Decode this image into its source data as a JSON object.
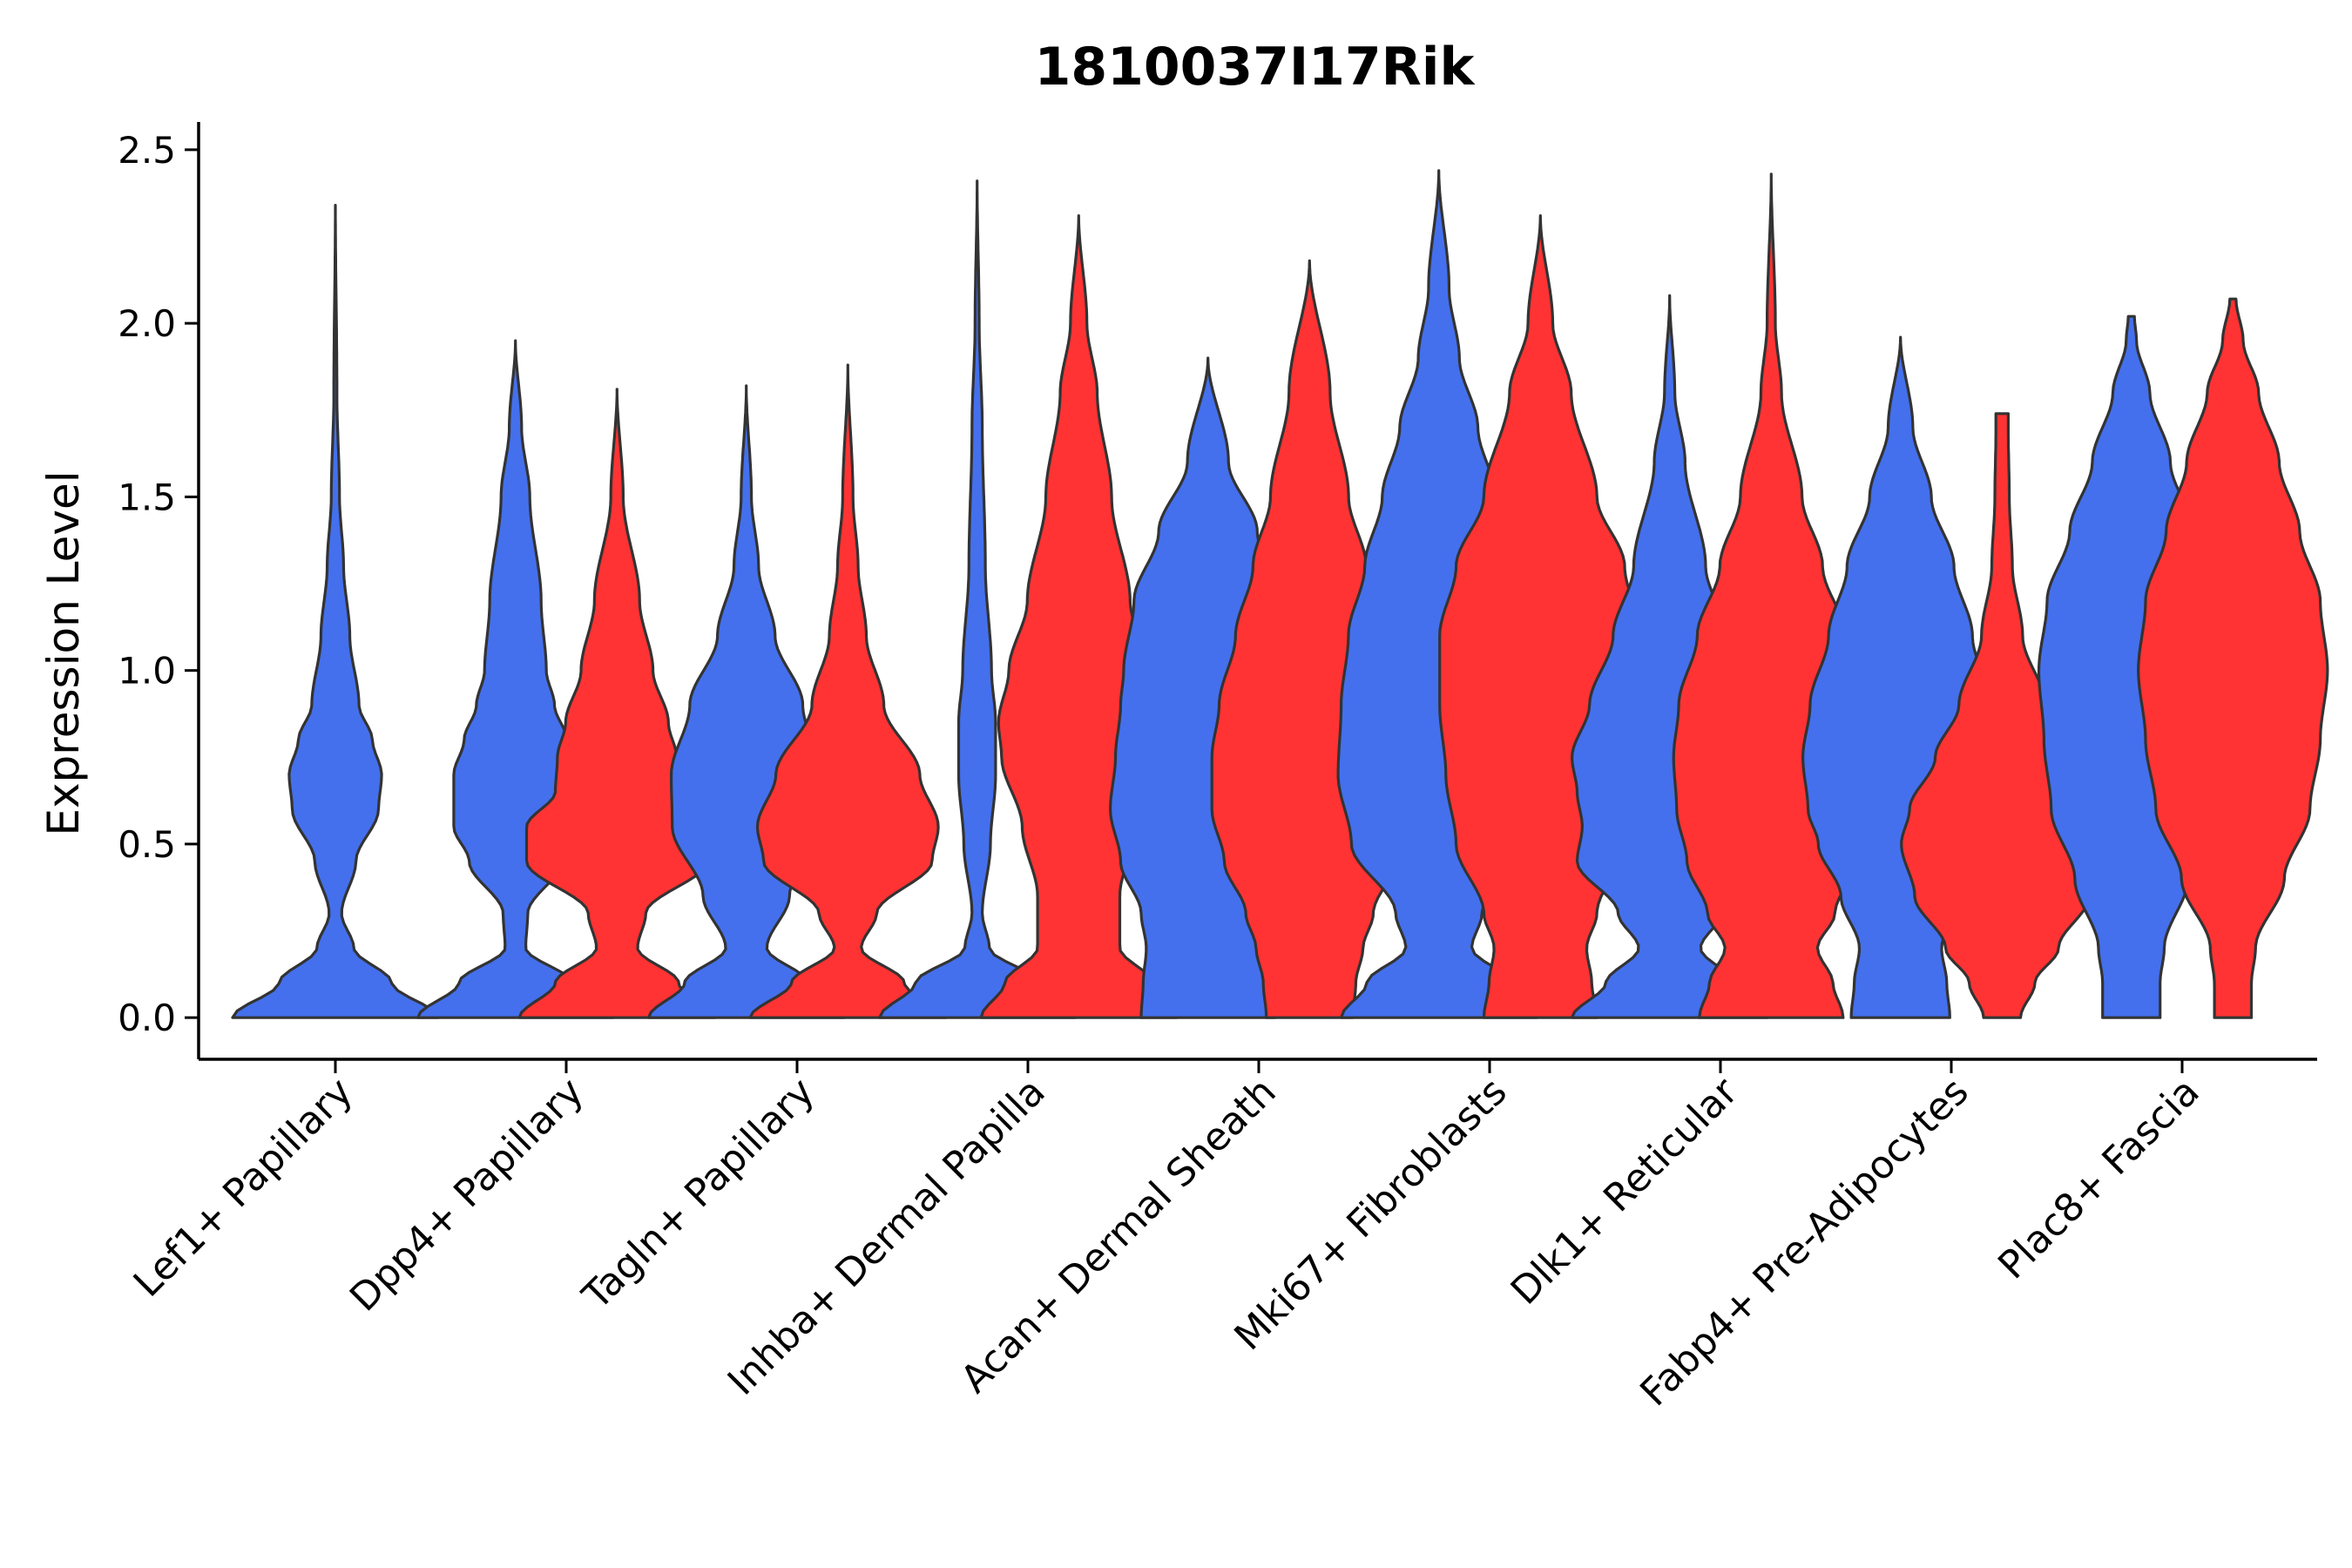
{
  "chart_data": {
    "type": "violin",
    "title": "1810037I17Rik",
    "xlabel": "",
    "ylabel": "Expression Level",
    "ylim": [
      -0.12,
      2.58
    ],
    "yticks": [
      0.0,
      0.5,
      1.0,
      1.5,
      2.0,
      2.5
    ],
    "ytick_labels": [
      "0.0",
      "0.5",
      "1.0",
      "1.5",
      "2.0",
      "2.5"
    ],
    "grid": false,
    "legend": "none",
    "group_colors": [
      "#4470ed",
      "#ff3333"
    ],
    "categories": [
      "Lef1+ Papillary",
      "Dpp4+ Papillary",
      "Tagln+ Papillary",
      "Inhba+ Dermal Papilla",
      "Acan+ Dermal Sheath",
      "Mki67+ Fibroblasts",
      "Dlk1+ Reticular",
      "Fabp4+ Pre-Adipocytes",
      "Plac8+ Fascia"
    ],
    "violins": [
      {
        "category": "Lef1+ Papillary",
        "group": 0,
        "color": "#4470ed",
        "x_offset": 0.0,
        "max": 2.34,
        "profile": [
          [
            0.0,
            1.0
          ],
          [
            0.1,
            0.55
          ],
          [
            0.2,
            0.18
          ],
          [
            0.3,
            0.06
          ],
          [
            0.45,
            0.2
          ],
          [
            0.6,
            0.42
          ],
          [
            0.7,
            0.45
          ],
          [
            0.8,
            0.36
          ],
          [
            0.9,
            0.23
          ],
          [
            1.1,
            0.14
          ],
          [
            1.3,
            0.08
          ],
          [
            1.5,
            0.04
          ],
          [
            1.8,
            0.015
          ],
          [
            2.34,
            0.0
          ]
        ]
      },
      {
        "category": "Dpp4+ Papillary",
        "group": 0,
        "color": "#4470ed",
        "x_offset": -0.22,
        "max": 1.95,
        "profile": [
          [
            0.0,
            0.95
          ],
          [
            0.1,
            0.55
          ],
          [
            0.2,
            0.1
          ],
          [
            0.3,
            0.12
          ],
          [
            0.45,
            0.45
          ],
          [
            0.55,
            0.6
          ],
          [
            0.7,
            0.6
          ],
          [
            0.8,
            0.5
          ],
          [
            0.9,
            0.38
          ],
          [
            1.0,
            0.3
          ],
          [
            1.2,
            0.25
          ],
          [
            1.5,
            0.14
          ],
          [
            1.7,
            0.06
          ],
          [
            1.95,
            0.0
          ]
        ]
      },
      {
        "category": "Dpp4+ Papillary",
        "group": 1,
        "color": "#ff3333",
        "x_offset": 0.22,
        "max": 1.81,
        "profile": [
          [
            0.0,
            0.95
          ],
          [
            0.1,
            0.6
          ],
          [
            0.2,
            0.2
          ],
          [
            0.3,
            0.28
          ],
          [
            0.45,
            0.88
          ],
          [
            0.55,
            0.88
          ],
          [
            0.65,
            0.6
          ],
          [
            0.75,
            0.58
          ],
          [
            0.85,
            0.5
          ],
          [
            1.0,
            0.35
          ],
          [
            1.2,
            0.22
          ],
          [
            1.5,
            0.06
          ],
          [
            1.81,
            0.0
          ]
        ]
      },
      {
        "category": "Tagln+ Papillary",
        "group": 0,
        "color": "#4470ed",
        "x_offset": -0.22,
        "max": 1.82,
        "profile": [
          [
            0.0,
            0.95
          ],
          [
            0.1,
            0.6
          ],
          [
            0.2,
            0.2
          ],
          [
            0.35,
            0.42
          ],
          [
            0.55,
            0.72
          ],
          [
            0.7,
            0.73
          ],
          [
            0.9,
            0.55
          ],
          [
            1.1,
            0.28
          ],
          [
            1.3,
            0.12
          ],
          [
            1.5,
            0.05
          ],
          [
            1.82,
            0.0
          ]
        ]
      },
      {
        "category": "Tagln+ Papillary",
        "group": 1,
        "color": "#ff3333",
        "x_offset": 0.22,
        "max": 1.88,
        "profile": [
          [
            0.0,
            0.95
          ],
          [
            0.1,
            0.55
          ],
          [
            0.2,
            0.13
          ],
          [
            0.3,
            0.28
          ],
          [
            0.45,
            0.82
          ],
          [
            0.55,
            0.88
          ],
          [
            0.7,
            0.7
          ],
          [
            0.9,
            0.35
          ],
          [
            1.1,
            0.18
          ],
          [
            1.3,
            0.1
          ],
          [
            1.5,
            0.05
          ],
          [
            1.88,
            0.0
          ]
        ]
      },
      {
        "category": "Inhba+ Dermal Papilla",
        "group": 0,
        "color": "#4470ed",
        "x_offset": -0.22,
        "max": 2.41,
        "profile": [
          [
            0.0,
            0.95
          ],
          [
            0.1,
            0.6
          ],
          [
            0.2,
            0.12
          ],
          [
            0.3,
            0.05
          ],
          [
            0.5,
            0.13
          ],
          [
            0.7,
            0.18
          ],
          [
            0.85,
            0.18
          ],
          [
            1.0,
            0.14
          ],
          [
            1.3,
            0.08
          ],
          [
            1.7,
            0.05
          ],
          [
            2.0,
            0.02
          ],
          [
            2.41,
            0.0
          ]
        ]
      },
      {
        "category": "Inhba+ Dermal Papilla",
        "group": 1,
        "color": "#ff3333",
        "x_offset": 0.22,
        "max": 2.31,
        "profile": [
          [
            0.0,
            0.95
          ],
          [
            0.1,
            0.72
          ],
          [
            0.2,
            0.4
          ],
          [
            0.35,
            0.4
          ],
          [
            0.55,
            0.55
          ],
          [
            0.75,
            0.75
          ],
          [
            0.85,
            0.78
          ],
          [
            1.0,
            0.68
          ],
          [
            1.2,
            0.5
          ],
          [
            1.5,
            0.32
          ],
          [
            1.8,
            0.18
          ],
          [
            2.0,
            0.08
          ],
          [
            2.31,
            0.0
          ]
        ]
      },
      {
        "category": "Acan+ Dermal Sheath",
        "group": 0,
        "color": "#4470ed",
        "x_offset": -0.22,
        "max": 1.9,
        "profile": [
          [
            0.0,
            0.65
          ],
          [
            0.1,
            0.63
          ],
          [
            0.2,
            0.6
          ],
          [
            0.3,
            0.65
          ],
          [
            0.45,
            0.85
          ],
          [
            0.6,
            0.95
          ],
          [
            0.75,
            0.9
          ],
          [
            0.9,
            0.85
          ],
          [
            1.0,
            0.82
          ],
          [
            1.2,
            0.72
          ],
          [
            1.4,
            0.48
          ],
          [
            1.6,
            0.2
          ],
          [
            1.9,
            0.0
          ]
        ]
      },
      {
        "category": "Acan+ Dermal Sheath",
        "group": 1,
        "color": "#ff3333",
        "x_offset": 0.22,
        "max": 2.18,
        "profile": [
          [
            0.0,
            0.42
          ],
          [
            0.1,
            0.45
          ],
          [
            0.2,
            0.52
          ],
          [
            0.3,
            0.62
          ],
          [
            0.45,
            0.83
          ],
          [
            0.6,
            0.95
          ],
          [
            0.75,
            0.95
          ],
          [
            0.9,
            0.88
          ],
          [
            1.1,
            0.72
          ],
          [
            1.3,
            0.55
          ],
          [
            1.5,
            0.38
          ],
          [
            1.8,
            0.2
          ],
          [
            2.18,
            0.0
          ]
        ]
      },
      {
        "category": "Mki67+ Fibroblasts",
        "group": 0,
        "color": "#4470ed",
        "x_offset": -0.22,
        "max": 2.44,
        "profile": [
          [
            0.0,
            0.95
          ],
          [
            0.1,
            0.7
          ],
          [
            0.2,
            0.32
          ],
          [
            0.3,
            0.42
          ],
          [
            0.5,
            0.85
          ],
          [
            0.7,
            0.98
          ],
          [
            0.9,
            0.95
          ],
          [
            1.1,
            0.88
          ],
          [
            1.3,
            0.72
          ],
          [
            1.5,
            0.55
          ],
          [
            1.7,
            0.38
          ],
          [
            1.9,
            0.2
          ],
          [
            2.1,
            0.1
          ],
          [
            2.44,
            0.0
          ]
        ]
      },
      {
        "category": "Mki67+ Fibroblasts",
        "group": 1,
        "color": "#ff3333",
        "x_offset": 0.22,
        "max": 2.31,
        "profile": [
          [
            0.0,
            0.55
          ],
          [
            0.1,
            0.5
          ],
          [
            0.2,
            0.45
          ],
          [
            0.3,
            0.55
          ],
          [
            0.5,
            0.82
          ],
          [
            0.7,
            0.92
          ],
          [
            0.9,
            0.98
          ],
          [
            1.1,
            0.98
          ],
          [
            1.3,
            0.82
          ],
          [
            1.5,
            0.55
          ],
          [
            1.8,
            0.3
          ],
          [
            2.0,
            0.12
          ],
          [
            2.31,
            0.0
          ]
        ]
      },
      {
        "category": "Dlk1+ Reticular",
        "group": 0,
        "color": "#4470ed",
        "x_offset": -0.22,
        "max": 2.08,
        "profile": [
          [
            0.0,
            0.95
          ],
          [
            0.1,
            0.62
          ],
          [
            0.2,
            0.3
          ],
          [
            0.3,
            0.5
          ],
          [
            0.45,
            0.9
          ],
          [
            0.55,
            0.85
          ],
          [
            0.65,
            0.9
          ],
          [
            0.75,
            0.95
          ],
          [
            0.9,
            0.78
          ],
          [
            1.1,
            0.55
          ],
          [
            1.3,
            0.35
          ],
          [
            1.6,
            0.15
          ],
          [
            1.8,
            0.05
          ],
          [
            2.08,
            0.0
          ]
        ]
      },
      {
        "category": "Dlk1+ Reticular",
        "group": 1,
        "color": "#ff3333",
        "x_offset": 0.22,
        "max": 2.43,
        "profile": [
          [
            0.0,
            0.7
          ],
          [
            0.1,
            0.6
          ],
          [
            0.2,
            0.45
          ],
          [
            0.3,
            0.62
          ],
          [
            0.45,
            0.82
          ],
          [
            0.6,
            0.92
          ],
          [
            0.75,
            0.95
          ],
          [
            0.9,
            0.9
          ],
          [
            1.1,
            0.72
          ],
          [
            1.3,
            0.5
          ],
          [
            1.5,
            0.3
          ],
          [
            1.8,
            0.1
          ],
          [
            2.0,
            0.04
          ],
          [
            2.43,
            0.0
          ]
        ]
      },
      {
        "category": "Fabp4+ Pre-Adipocytes",
        "group": 0,
        "color": "#4470ed",
        "x_offset": -0.22,
        "max": 1.96,
        "profile": [
          [
            0.0,
            0.48
          ],
          [
            0.1,
            0.45
          ],
          [
            0.2,
            0.4
          ],
          [
            0.35,
            0.58
          ],
          [
            0.5,
            0.8
          ],
          [
            0.6,
            0.9
          ],
          [
            0.75,
            0.95
          ],
          [
            0.9,
            0.88
          ],
          [
            1.1,
            0.7
          ],
          [
            1.3,
            0.52
          ],
          [
            1.5,
            0.3
          ],
          [
            1.7,
            0.12
          ],
          [
            1.96,
            0.0
          ]
        ]
      },
      {
        "category": "Fabp4+ Pre-Adipocytes",
        "group": 1,
        "color": "#ff3333",
        "x_offset": 0.22,
        "max": 1.74,
        "profile": [
          [
            0.0,
            0.18
          ],
          [
            0.1,
            0.32
          ],
          [
            0.2,
            0.55
          ],
          [
            0.35,
            0.85
          ],
          [
            0.5,
            0.98
          ],
          [
            0.6,
            0.9
          ],
          [
            0.75,
            0.65
          ],
          [
            0.9,
            0.42
          ],
          [
            1.1,
            0.2
          ],
          [
            1.3,
            0.1
          ],
          [
            1.5,
            0.07
          ],
          [
            1.7,
            0.06
          ],
          [
            1.74,
            0.06
          ]
        ]
      },
      {
        "category": "Plac8+ Fascia",
        "group": 0,
        "color": "#4470ed",
        "x_offset": -0.22,
        "max": 2.02,
        "profile": [
          [
            0.0,
            0.28
          ],
          [
            0.1,
            0.28
          ],
          [
            0.2,
            0.32
          ],
          [
            0.4,
            0.55
          ],
          [
            0.6,
            0.78
          ],
          [
            0.8,
            0.85
          ],
          [
            1.0,
            0.9
          ],
          [
            1.2,
            0.82
          ],
          [
            1.4,
            0.6
          ],
          [
            1.6,
            0.38
          ],
          [
            1.8,
            0.18
          ],
          [
            1.95,
            0.05
          ],
          [
            2.02,
            0.03
          ]
        ]
      },
      {
        "category": "Plac8+ Fascia",
        "group": 1,
        "color": "#ff3333",
        "x_offset": 0.22,
        "max": 2.07,
        "profile": [
          [
            0.0,
            0.18
          ],
          [
            0.1,
            0.18
          ],
          [
            0.2,
            0.22
          ],
          [
            0.4,
            0.5
          ],
          [
            0.6,
            0.75
          ],
          [
            0.8,
            0.85
          ],
          [
            1.0,
            0.92
          ],
          [
            1.2,
            0.85
          ],
          [
            1.4,
            0.65
          ],
          [
            1.6,
            0.45
          ],
          [
            1.8,
            0.25
          ],
          [
            1.95,
            0.1
          ],
          [
            2.07,
            0.03
          ]
        ]
      }
    ]
  }
}
